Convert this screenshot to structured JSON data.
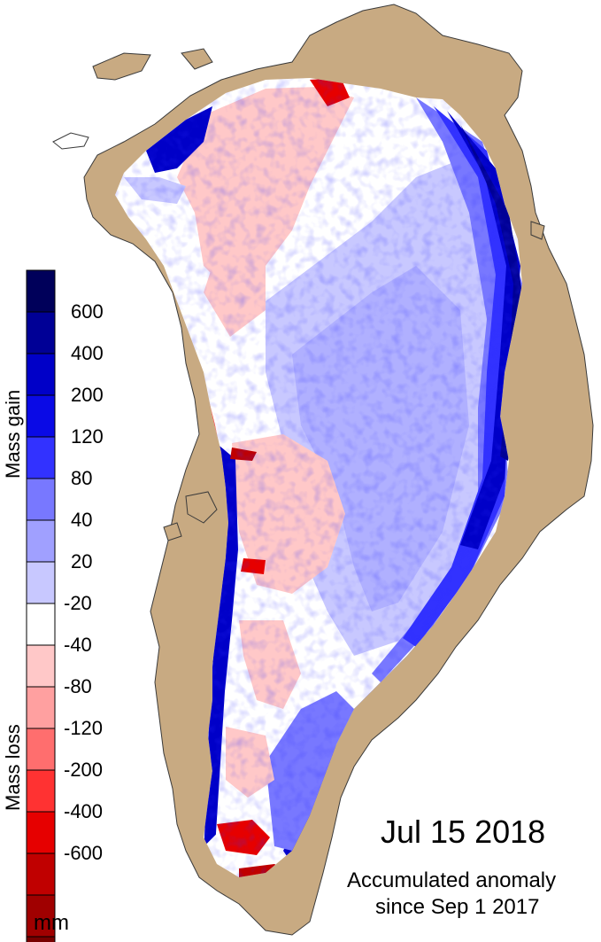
{
  "legend": {
    "ticks": [
      "600",
      "400",
      "200",
      "120",
      "80",
      "40",
      "20",
      "-20",
      "-40",
      "-80",
      "-120",
      "-200",
      "-400",
      "-600"
    ],
    "bin_colors": [
      "#00005a",
      "#000096",
      "#0000c8",
      "#0a0ae6",
      "#3232ff",
      "#7878ff",
      "#a0a0ff",
      "#c8c8ff",
      "#ffffff",
      "#ffc8c8",
      "#ffa0a0",
      "#ff6e6e",
      "#ff3232",
      "#e60000",
      "#c00000",
      "#a00000",
      "#780000"
    ],
    "gain_label": "Mass gain",
    "loss_label": "Mass loss",
    "unit": "mm"
  },
  "map": {
    "date": "Jul 15 2018",
    "subtitle_line1": "Accumulated anomaly",
    "subtitle_line2": "since Sep 1 2017",
    "land_color": "#c8aa82",
    "ocean_color": "#ffffff"
  }
}
